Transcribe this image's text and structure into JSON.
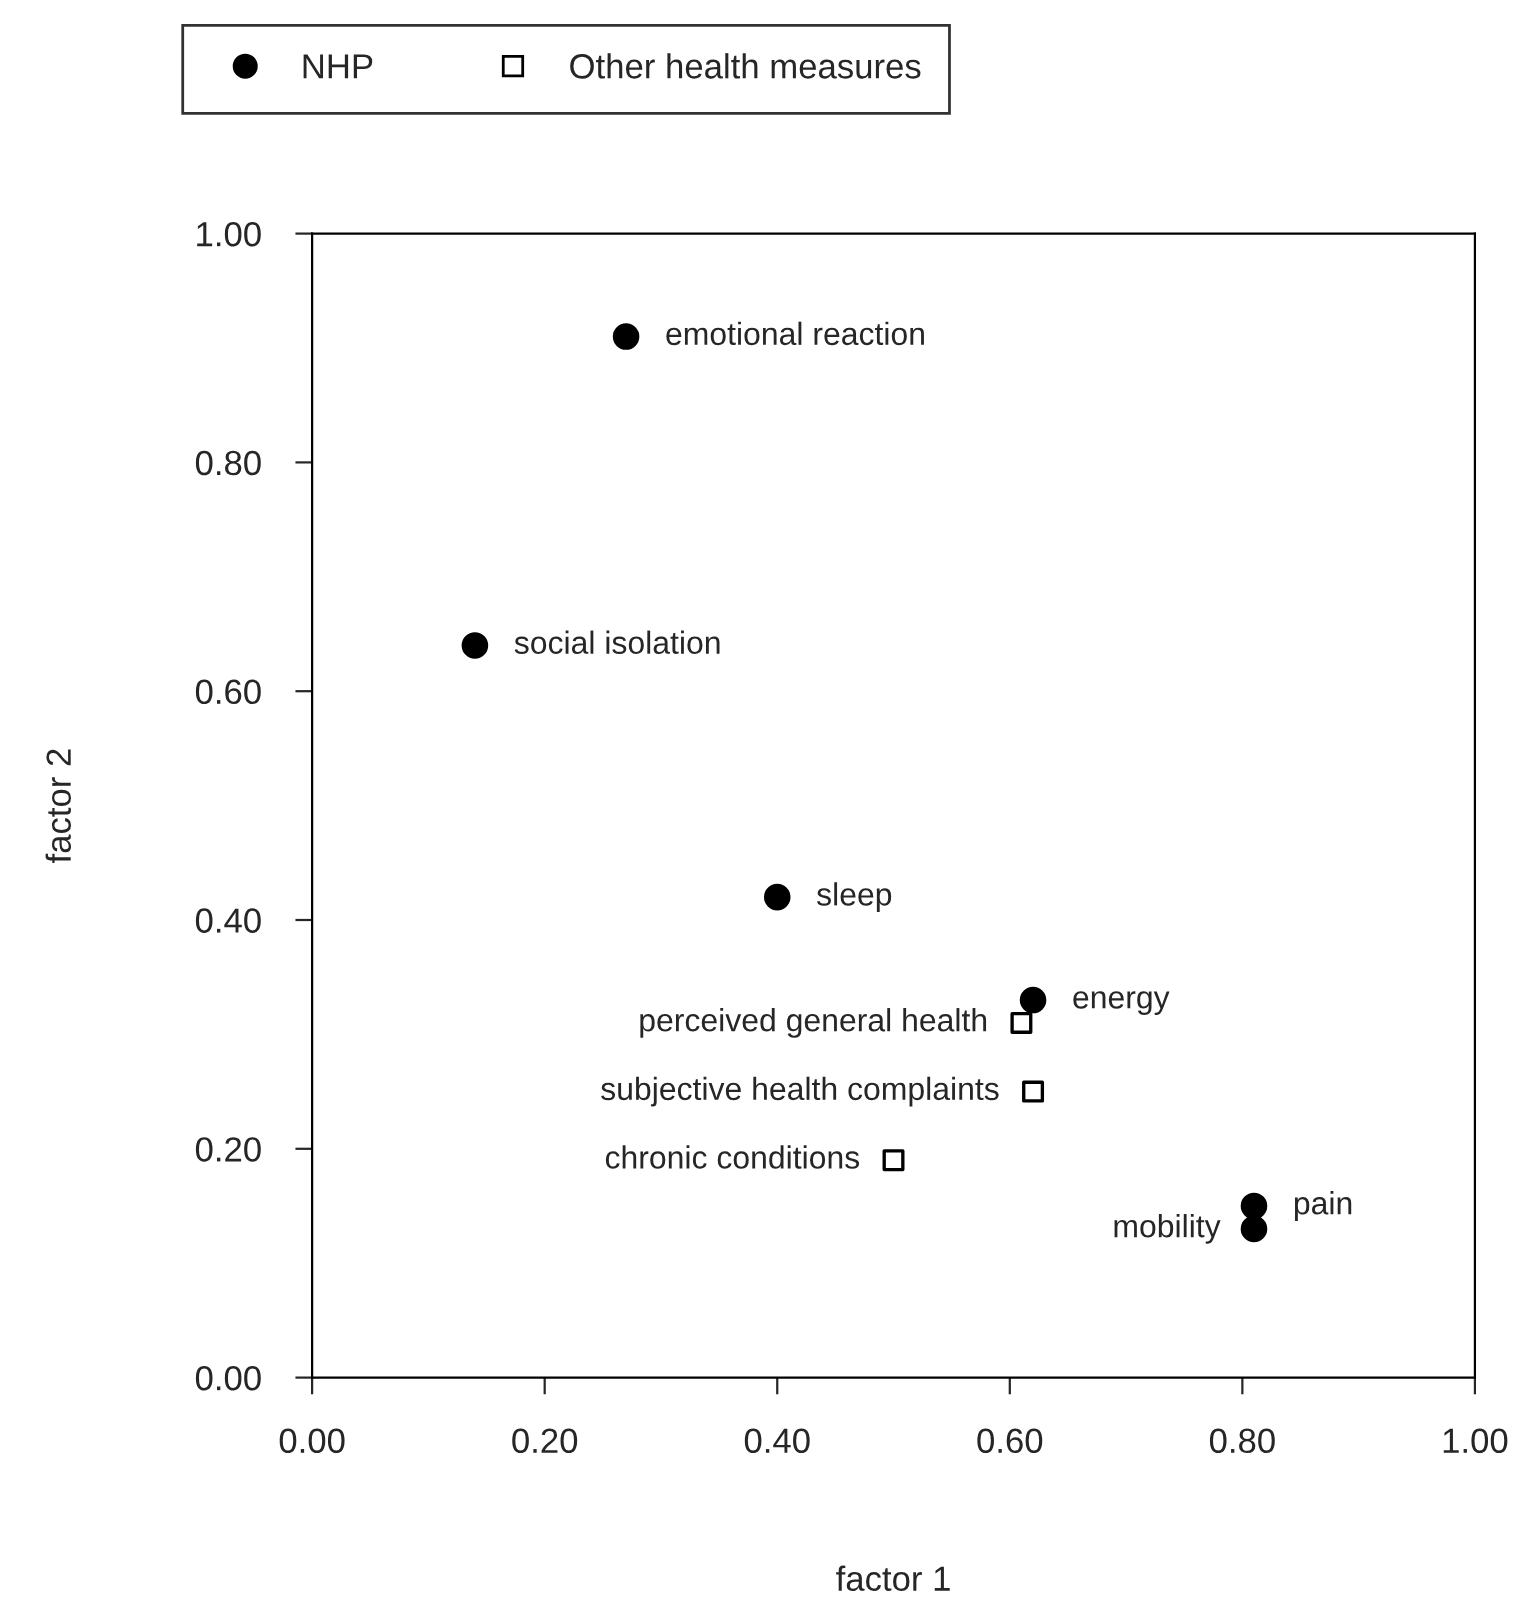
{
  "chart_data": {
    "type": "scatter",
    "xlabel": "factor 1",
    "ylabel": "factor 2",
    "series": [
      {
        "name": "NHP",
        "color": "#000000",
        "marker": "circle",
        "x": [
          0.27,
          0.14,
          0.4,
          0.62,
          0.81,
          0.81
        ],
        "values": [
          0.91,
          0.64,
          0.42,
          0.33,
          0.15,
          0.13
        ]
      },
      {
        "name": "Other health measures",
        "color": "#000000",
        "marker": "square",
        "x": [
          0.61,
          0.62,
          0.5
        ],
        "values": [
          0.31,
          0.25,
          0.19
        ]
      }
    ],
    "annotations": [
      {
        "text": "emotional reaction",
        "x": 0.27,
        "y": 0.91
      },
      {
        "text": "social isolation",
        "x": 0.14,
        "y": 0.64
      },
      {
        "text": "sleep",
        "x": 0.4,
        "y": 0.42
      },
      {
        "text": "energy",
        "x": 0.62,
        "y": 0.33
      },
      {
        "text": "pain",
        "x": 0.81,
        "y": 0.15
      },
      {
        "text": "mobility",
        "x": 0.81,
        "y": 0.13
      },
      {
        "text": "perceived general health",
        "x": 0.61,
        "y": 0.31
      },
      {
        "text": "subjective health complaints",
        "x": 0.62,
        "y": 0.25
      },
      {
        "text": "chronic conditions",
        "x": 0.5,
        "y": 0.19
      }
    ],
    "xlim": [
      0,
      1
    ],
    "ylim": [
      0,
      1
    ],
    "xticks": [
      {
        "value": 0,
        "label": "0.00"
      },
      {
        "value": 0.2,
        "label": "0.20"
      },
      {
        "value": 0.4,
        "label": "0.40"
      },
      {
        "value": 0.6,
        "label": "0.60"
      },
      {
        "value": 0.8,
        "label": "0.80"
      },
      {
        "value": 1,
        "label": "1.00"
      }
    ],
    "yticks": [
      {
        "value": 0,
        "label": "0.00"
      },
      {
        "value": 0.2,
        "label": "0.20"
      },
      {
        "value": 0.4,
        "label": "0.40"
      },
      {
        "value": 0.6,
        "label": "0.60"
      },
      {
        "value": 0.8,
        "label": "0.80"
      },
      {
        "value": 1,
        "label": "1.00"
      }
    ],
    "grid": false,
    "legend": "top"
  }
}
